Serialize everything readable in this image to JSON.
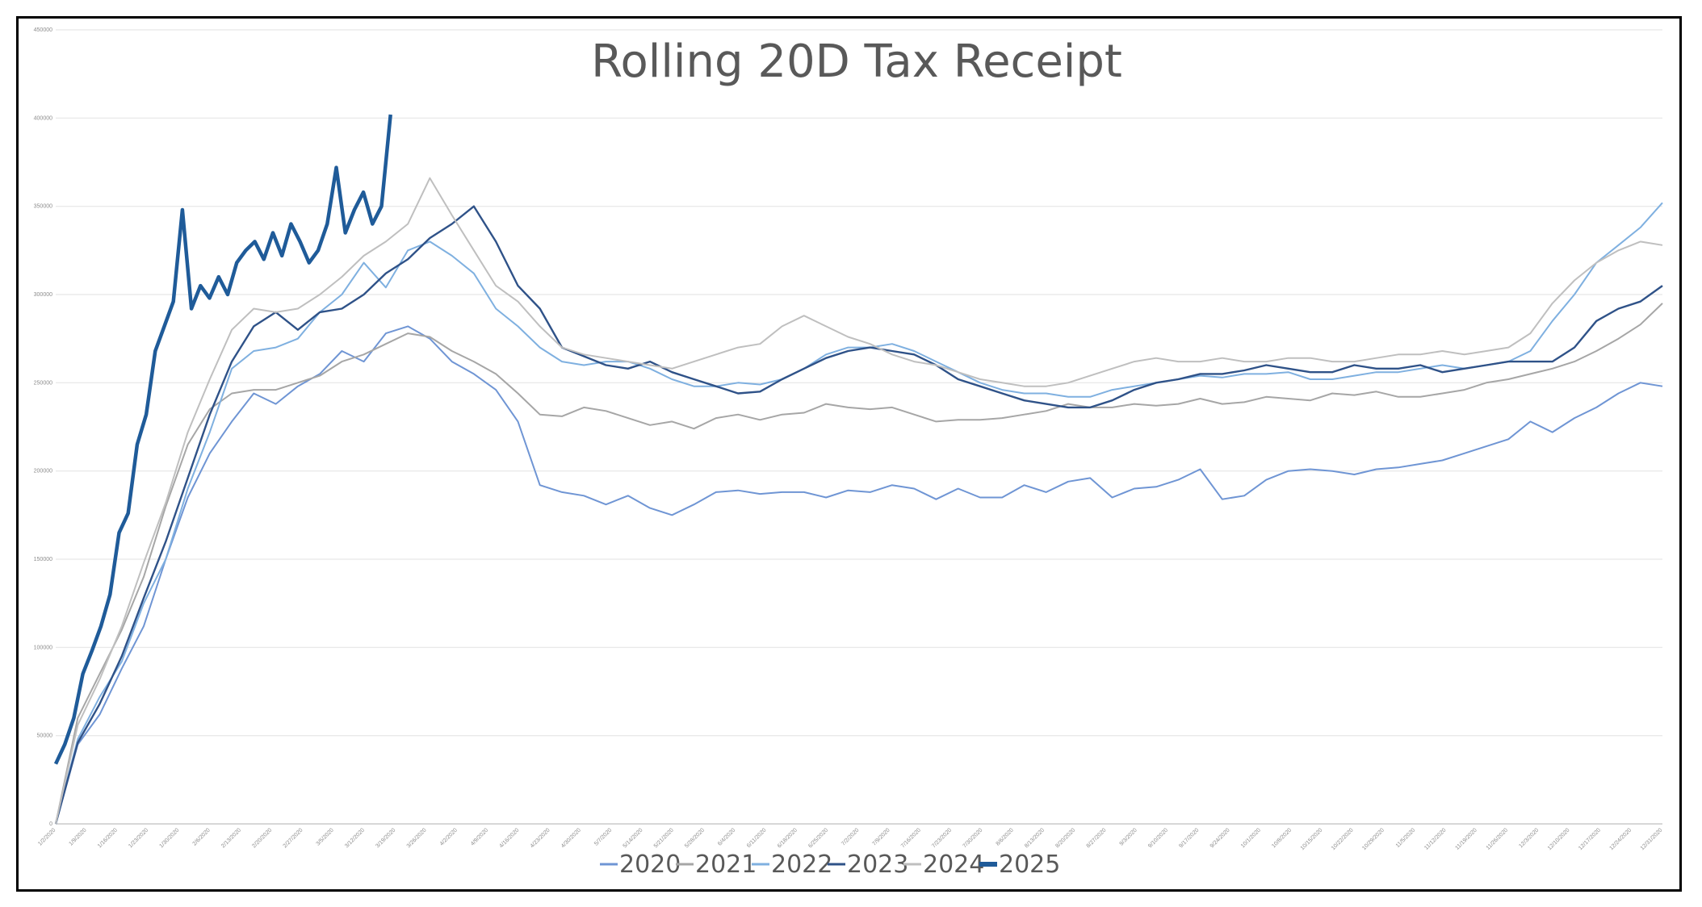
{
  "chart_data": {
    "type": "line",
    "title": "Rolling 20D Tax Receipt",
    "xlabel": "",
    "ylabel": "",
    "ylim": [
      0,
      450000
    ],
    "y_ticks": [
      0,
      50000,
      100000,
      150000,
      200000,
      250000,
      300000,
      350000,
      400000,
      450000
    ],
    "x_ticks": [
      "1/2/2020",
      "1/9/2020",
      "1/16/2020",
      "1/23/2020",
      "1/30/2020",
      "2/6/2020",
      "2/13/2020",
      "2/20/2020",
      "2/27/2020",
      "3/5/2020",
      "3/12/2020",
      "3/19/2020",
      "3/26/2020",
      "4/2/2020",
      "4/9/2020",
      "4/16/2020",
      "4/23/2020",
      "4/30/2020",
      "5/7/2020",
      "5/14/2020",
      "5/21/2020",
      "5/28/2020",
      "6/4/2020",
      "6/11/2020",
      "6/18/2020",
      "6/25/2020",
      "7/2/2020",
      "7/9/2020",
      "7/16/2020",
      "7/23/2020",
      "7/30/2020",
      "8/6/2020",
      "8/13/2020",
      "8/20/2020",
      "8/27/2020",
      "9/3/2020",
      "9/10/2020",
      "9/17/2020",
      "9/24/2020",
      "10/1/2020",
      "10/8/2020",
      "10/15/2020",
      "10/22/2020",
      "10/29/2020",
      "11/5/2020",
      "11/12/2020",
      "11/19/2020",
      "11/26/2020",
      "12/3/2020",
      "12/10/2020",
      "12/17/2020",
      "12/24/2020",
      "12/31/2020"
    ],
    "x_range": [
      0,
      52
    ],
    "grid": true,
    "legend_position": "bottom",
    "series": [
      {
        "name": "2020",
        "color": "#6f95d4",
        "width": 2,
        "values": [
          0,
          45000,
          62000,
          88000,
          112000,
          150000,
          185000,
          210000,
          228000,
          244000,
          238000,
          248000,
          255000,
          268000,
          262000,
          278000,
          282000,
          275000,
          262000,
          255000,
          246000,
          228000,
          192000,
          188000,
          186000,
          181000,
          186000,
          179000,
          175000,
          181000,
          188000,
          189000,
          187000,
          188000,
          188000,
          185000,
          189000,
          188000,
          192000,
          190000,
          184000,
          190000,
          185000,
          185000,
          192000,
          188000,
          194000,
          196000,
          185000,
          190000,
          191000,
          195000,
          201000,
          184000,
          186000,
          195000,
          200000,
          201000,
          200000,
          198000,
          201000,
          202000,
          204000,
          206000,
          210000,
          214000,
          218000,
          228000,
          222000,
          230000,
          236000,
          244000,
          250000,
          248000
        ]
      },
      {
        "name": "2021",
        "color": "#a6a6a6",
        "width": 2,
        "values": [
          0,
          60000,
          85000,
          110000,
          140000,
          180000,
          215000,
          235000,
          244000,
          246000,
          246000,
          250000,
          254000,
          262000,
          266000,
          272000,
          278000,
          276000,
          268000,
          262000,
          255000,
          244000,
          232000,
          231000,
          236000,
          234000,
          230000,
          226000,
          228000,
          224000,
          230000,
          232000,
          229000,
          232000,
          233000,
          238000,
          236000,
          235000,
          236000,
          232000,
          228000,
          229000,
          229000,
          230000,
          232000,
          234000,
          238000,
          236000,
          236000,
          238000,
          237000,
          238000,
          241000,
          238000,
          239000,
          242000,
          241000,
          240000,
          244000,
          243000,
          245000,
          242000,
          242000,
          244000,
          246000,
          250000,
          252000,
          255000,
          258000,
          262000,
          268000,
          275000,
          283000,
          295000
        ]
      },
      {
        "name": "2022",
        "color": "#7fb0e0",
        "width": 2,
        "values": [
          0,
          48000,
          72000,
          92000,
          125000,
          150000,
          190000,
          222000,
          258000,
          268000,
          270000,
          275000,
          290000,
          300000,
          318000,
          304000,
          325000,
          330000,
          322000,
          312000,
          292000,
          282000,
          270000,
          262000,
          260000,
          262000,
          262000,
          258000,
          252000,
          248000,
          248000,
          250000,
          249000,
          252000,
          258000,
          266000,
          270000,
          270000,
          272000,
          268000,
          262000,
          256000,
          250000,
          246000,
          244000,
          244000,
          242000,
          242000,
          246000,
          248000,
          250000,
          252000,
          254000,
          253000,
          255000,
          255000,
          256000,
          252000,
          252000,
          254000,
          256000,
          256000,
          258000,
          260000,
          258000,
          260000,
          262000,
          268000,
          285000,
          300000,
          318000,
          328000,
          338000,
          352000
        ]
      },
      {
        "name": "2023",
        "color": "#2f5288",
        "width": 2.4,
        "values": [
          0,
          46000,
          68000,
          95000,
          128000,
          160000,
          196000,
          232000,
          262000,
          282000,
          290000,
          280000,
          290000,
          292000,
          300000,
          312000,
          320000,
          332000,
          340000,
          350000,
          330000,
          305000,
          292000,
          270000,
          265000,
          260000,
          258000,
          262000,
          256000,
          252000,
          248000,
          244000,
          245000,
          252000,
          258000,
          264000,
          268000,
          270000,
          268000,
          266000,
          260000,
          252000,
          248000,
          244000,
          240000,
          238000,
          236000,
          236000,
          240000,
          246000,
          250000,
          252000,
          255000,
          255000,
          257000,
          260000,
          258000,
          256000,
          256000,
          260000,
          258000,
          258000,
          260000,
          256000,
          258000,
          260000,
          262000,
          262000,
          262000,
          270000,
          285000,
          292000,
          296000,
          305000
        ]
      },
      {
        "name": "2024",
        "color": "#bfbfbf",
        "width": 2,
        "values": [
          0,
          56000,
          82000,
          112000,
          148000,
          182000,
          222000,
          252000,
          280000,
          292000,
          290000,
          292000,
          300000,
          310000,
          322000,
          330000,
          340000,
          366000,
          345000,
          325000,
          305000,
          296000,
          282000,
          270000,
          266000,
          264000,
          262000,
          260000,
          258000,
          262000,
          266000,
          270000,
          272000,
          282000,
          288000,
          282000,
          276000,
          272000,
          266000,
          262000,
          260000,
          256000,
          252000,
          250000,
          248000,
          248000,
          250000,
          254000,
          258000,
          262000,
          264000,
          262000,
          262000,
          264000,
          262000,
          262000,
          264000,
          264000,
          262000,
          262000,
          264000,
          266000,
          266000,
          268000,
          266000,
          268000,
          270000,
          278000,
          295000,
          308000,
          318000,
          325000,
          330000,
          328000
        ]
      },
      {
        "name": "2025",
        "color": "#1f5b99",
        "width": 4.5,
        "values": [
          34000,
          45000,
          60000,
          85000,
          98000,
          112000,
          130000,
          165000,
          176000,
          215000,
          232000,
          268000,
          282000,
          296000,
          348000,
          292000,
          305000,
          298000,
          310000,
          300000,
          318000,
          325000,
          330000,
          320000,
          335000,
          322000,
          340000,
          330000,
          318000,
          325000,
          340000,
          372000,
          335000,
          348000,
          358000,
          340000,
          350000,
          402000
        ]
      }
    ]
  },
  "legend": {
    "items": [
      {
        "label": "2020",
        "color": "#6f95d4",
        "width": 3
      },
      {
        "label": "2021",
        "color": "#a6a6a6",
        "width": 3
      },
      {
        "label": "2022",
        "color": "#7fb0e0",
        "width": 3
      },
      {
        "label": "2023",
        "color": "#2f5288",
        "width": 3
      },
      {
        "label": "2024",
        "color": "#bfbfbf",
        "width": 3
      },
      {
        "label": "2025",
        "color": "#1f5b99",
        "width": 6
      }
    ]
  }
}
